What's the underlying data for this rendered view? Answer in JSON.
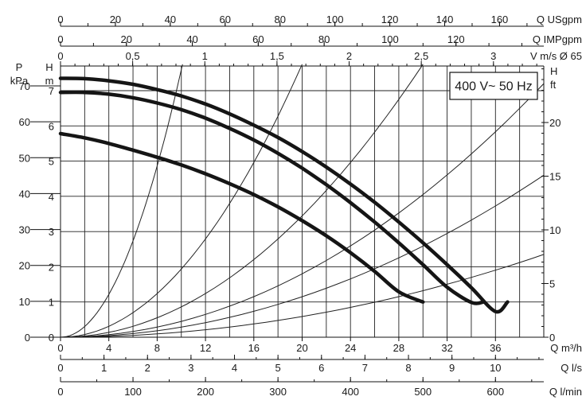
{
  "chart_data": {
    "type": "line",
    "title": "",
    "badge": "400 V~ 50 Hz",
    "x_axes": [
      {
        "key": "q_usgpm",
        "label": "Q USgpm",
        "position": "top-1",
        "ticks": [
          "0",
          "20",
          "40",
          "60",
          "80",
          "100",
          "120",
          "140",
          "160"
        ],
        "values": [
          0,
          20,
          40,
          60,
          80,
          100,
          120,
          140,
          160
        ]
      },
      {
        "key": "q_impgpm",
        "label": "Q IMPgpm",
        "position": "top-2",
        "ticks": [
          "0",
          "20",
          "40",
          "60",
          "80",
          "100",
          "120"
        ],
        "values": [
          0,
          20,
          40,
          60,
          80,
          100,
          120
        ]
      },
      {
        "key": "v_ms",
        "label": "V m/s Ø 65",
        "position": "top-3",
        "ticks": [
          "0",
          "0,5",
          "1",
          "1,5",
          "2",
          "2,5",
          "3"
        ],
        "values": [
          0,
          0.5,
          1,
          1.5,
          2,
          2.5,
          3
        ]
      },
      {
        "key": "q_m3h",
        "label": "Q m³/h",
        "position": "bottom-1",
        "ticks": [
          "0",
          "4",
          "8",
          "12",
          "16",
          "20",
          "24",
          "28",
          "32",
          "36"
        ],
        "values": [
          0,
          4,
          8,
          12,
          16,
          20,
          24,
          28,
          32,
          36
        ]
      },
      {
        "key": "q_ls",
        "label": "Q l/s",
        "position": "bottom-2",
        "ticks": [
          "0",
          "1",
          "2",
          "3",
          "4",
          "5",
          "6",
          "7",
          "8",
          "9",
          "10"
        ],
        "values": [
          0,
          1,
          2,
          3,
          4,
          5,
          6,
          7,
          8,
          9,
          10
        ]
      },
      {
        "key": "q_lmin",
        "label": "Q l/min",
        "position": "bottom-3",
        "ticks": [
          "0",
          "100",
          "200",
          "300",
          "400",
          "500",
          "600"
        ],
        "values": [
          0,
          100,
          200,
          300,
          400,
          500,
          600
        ]
      }
    ],
    "y_axes": [
      {
        "key": "p_kpa",
        "label_lines": [
          "P",
          "kPa"
        ],
        "position": "left-outer",
        "ticks": [
          "0",
          "10",
          "20",
          "30",
          "40",
          "50",
          "60",
          "70"
        ],
        "values": [
          0,
          10,
          20,
          30,
          40,
          50,
          60,
          70
        ]
      },
      {
        "key": "h_m",
        "label_lines": [
          "H",
          "m"
        ],
        "position": "left-inner",
        "ticks": [
          "0",
          "1",
          "2",
          "3",
          "4",
          "5",
          "6",
          "7"
        ],
        "values": [
          0,
          1,
          2,
          3,
          4,
          5,
          6,
          7
        ]
      },
      {
        "key": "h_ft",
        "label_lines": [
          "H",
          "ft"
        ],
        "position": "right",
        "ticks": [
          "0",
          "5",
          "10",
          "15",
          "20"
        ],
        "values": [
          0,
          5,
          10,
          15,
          20
        ]
      }
    ],
    "xlim_m3h": [
      0,
      40
    ],
    "ylim_m": [
      0,
      7.7
    ],
    "grid": true,
    "series": [
      {
        "x": [
          0,
          2,
          4,
          6,
          8,
          10,
          12,
          14,
          16,
          18,
          20,
          22,
          24,
          26,
          28,
          30,
          32,
          34,
          36,
          37
        ],
        "y": [
          7.35,
          7.34,
          7.28,
          7.18,
          7.03,
          6.85,
          6.62,
          6.34,
          6.02,
          5.67,
          5.27,
          4.83,
          4.35,
          3.83,
          3.27,
          2.68,
          2.06,
          1.41,
          0.73,
          1.0
        ]
      },
      {
        "x": [
          0,
          2,
          4,
          6,
          8,
          10,
          12,
          14,
          16,
          18,
          20,
          22,
          24,
          26,
          28,
          30,
          32,
          34,
          35
        ],
        "y": [
          6.95,
          6.95,
          6.9,
          6.8,
          6.65,
          6.46,
          6.22,
          5.93,
          5.6,
          5.22,
          4.8,
          4.33,
          3.82,
          3.27,
          2.68,
          2.06,
          1.42,
          0.99,
          1.0
        ]
      },
      {
        "x": [
          0,
          2,
          4,
          6,
          8,
          10,
          12,
          14,
          16,
          18,
          20,
          22,
          24,
          26,
          28,
          30
        ],
        "y": [
          5.78,
          5.66,
          5.5,
          5.31,
          5.11,
          4.89,
          4.64,
          4.36,
          4.05,
          3.7,
          3.31,
          2.88,
          2.4,
          1.87,
          1.29,
          1.0
        ]
      }
    ],
    "system_curves_m": [
      {
        "x_end": 10.1,
        "y_end": 7.75
      },
      {
        "x_end": 20.0,
        "y_end": 7.75
      },
      {
        "x_end": 30.0,
        "y_end": 7.75
      },
      {
        "x_end": 40.0,
        "y_end": 7.2
      },
      {
        "x_end": 40.0,
        "y_end": 4.6
      },
      {
        "x_end": 40.0,
        "y_end": 2.35
      }
    ]
  }
}
